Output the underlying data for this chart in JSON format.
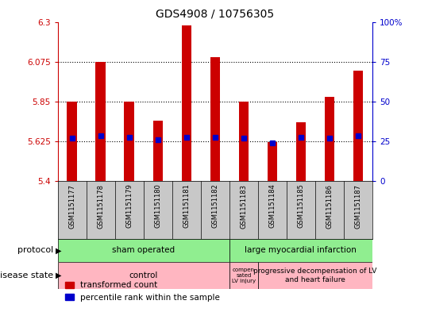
{
  "title": "GDS4908 / 10756305",
  "samples": [
    "GSM1151177",
    "GSM1151178",
    "GSM1151179",
    "GSM1151180",
    "GSM1151181",
    "GSM1151182",
    "GSM1151183",
    "GSM1151184",
    "GSM1151185",
    "GSM1151186",
    "GSM1151187"
  ],
  "bar_values": [
    5.85,
    6.075,
    5.85,
    5.74,
    6.28,
    6.1,
    5.85,
    5.62,
    5.73,
    5.875,
    6.025
  ],
  "percentile_values": [
    5.64,
    5.655,
    5.645,
    5.635,
    5.645,
    5.645,
    5.64,
    5.615,
    5.645,
    5.64,
    5.655
  ],
  "bar_bottom": 5.4,
  "ylim_left": [
    5.4,
    6.3
  ],
  "ylim_right": [
    0,
    100
  ],
  "yticks_left": [
    5.4,
    5.625,
    5.85,
    6.075,
    6.3
  ],
  "yticks_right": [
    0,
    25,
    50,
    75,
    100
  ],
  "ytick_labels_left": [
    "5.4",
    "5.625",
    "5.85",
    "6.075",
    "6.3"
  ],
  "ytick_labels_right": [
    "0",
    "25",
    "50",
    "75",
    "100%"
  ],
  "hlines": [
    5.625,
    5.85,
    6.075
  ],
  "bar_color": "#cc0000",
  "percentile_color": "#0000cc",
  "left_tick_color": "#cc0000",
  "right_tick_color": "#0000cc",
  "sham_color": "#90ee90",
  "lmi_color": "#90ee90",
  "disease_color": "#ffb6c1",
  "sample_bg_color": "#c8c8c8",
  "background_color": "#ffffff",
  "protocol_label": "protocol",
  "disease_label": "disease state",
  "legend_labels": [
    "transformed count",
    "percentile rank within the sample"
  ]
}
